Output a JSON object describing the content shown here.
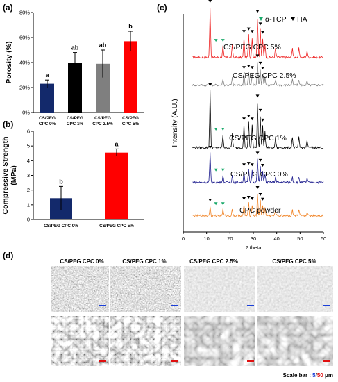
{
  "panel_letters": {
    "a": "(a)",
    "b": "(b)",
    "c": "(c)",
    "d": "(d)"
  },
  "chart_data": [
    {
      "type": "bar",
      "panel": "a",
      "ylabel": "Porosity (%)",
      "categories": [
        "CS/PEG CPC 0%",
        "CS/PEG CPC 1%",
        "CS/PEG CPC 2.5%",
        "CS/PEG CPC 5%"
      ],
      "values": [
        23,
        40,
        39,
        57
      ],
      "errors": [
        3,
        8,
        11,
        8
      ],
      "sig_labels": [
        "a",
        "ab",
        "ab",
        "b"
      ],
      "colors": [
        "#13296b",
        "#000000",
        "#7f7f7f",
        "#ff0000"
      ],
      "yticks": [
        "0%",
        "20%",
        "40%",
        "60%",
        "80%"
      ],
      "ylim": [
        0,
        80
      ]
    },
    {
      "type": "bar",
      "panel": "b",
      "ylabel": "Compressive Strength (MPa)",
      "categories": [
        "CS/PEG CPC 0%",
        "CS/PEG CPC 5%"
      ],
      "values": [
        1.45,
        4.55
      ],
      "errors": [
        0.8,
        0.25
      ],
      "sig_labels": [
        "b",
        "a"
      ],
      "colors": [
        "#13296b",
        "#ff0000"
      ],
      "yticks": [
        "0",
        "1",
        "2",
        "3",
        "4",
        "5",
        "6"
      ],
      "ylim": [
        0,
        6
      ]
    },
    {
      "type": "line",
      "panel": "c",
      "xlabel": "2 theta",
      "ylabel": "Intensity (A.U.)",
      "xlim": [
        0,
        60
      ],
      "xticks": [
        "0",
        "10",
        "20",
        "30",
        "40",
        "50",
        "60"
      ],
      "legend": [
        {
          "name": "α-TCP",
          "color": "#19a96a"
        },
        {
          "name": "HA",
          "color": "#000000"
        }
      ],
      "series": [
        {
          "name": "CS/PEG CPC 5%",
          "color": "#ee2222"
        },
        {
          "name": "CS/PEG CPC 2.5%",
          "color": "#808080"
        },
        {
          "name": "CS/PEG CPC 1%",
          "color": "#000000"
        },
        {
          "name": "CS/PEG CPC 0%",
          "color": "#1a1a8c"
        },
        {
          "name": "CPC powder",
          "color": "#f08020"
        }
      ],
      "peaks_2theta": [
        11.5,
        17,
        21,
        26,
        28,
        29.5,
        31.8,
        33,
        34,
        35,
        39.5,
        46.7,
        49.5,
        53
      ],
      "tcp_peaks_2theta": [
        14,
        17
      ]
    }
  ],
  "sem": {
    "columns": [
      "CS/PEG CPC 0%",
      "CS/PEG CPC 1%",
      "CS/PEG CPC 2.5%",
      "CS/PEG CPC 5%"
    ],
    "scale_prefix": "Scale bar : ",
    "scale_low": "5",
    "scale_sep": "/",
    "scale_high": "50",
    "scale_unit": " μm",
    "low_bar_color": "#1a3fd8",
    "high_bar_color": "#e01010"
  }
}
